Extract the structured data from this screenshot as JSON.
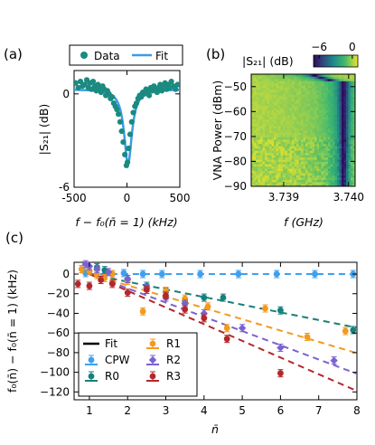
{
  "panel_labels": [
    "(a)",
    "(b)",
    "(c)"
  ],
  "colors": {
    "data_teal": "#1b8a80",
    "fit_blue": "#3b9be8",
    "CPW": "#3ea0ef",
    "R0": "#17807a",
    "R1": "#f39a1e",
    "R2": "#7b62d0",
    "R3": "#b3272c"
  },
  "chart_data": [
    {
      "id": "a",
      "type": "scatter",
      "xlabel": "f − f₀(n̄ = 1) (kHz)",
      "ylabel": "|S₂₁| (dB)",
      "xlim": [
        -500,
        500
      ],
      "ylim": [
        -6,
        1.5
      ],
      "xticks": [
        "-500",
        "0",
        "500"
      ],
      "yticks": [
        "-6",
        "0"
      ],
      "xtick_values": [
        -500,
        0,
        500
      ],
      "ytick_values": [
        -6,
        0
      ],
      "legend": [
        "Data",
        "Fit"
      ],
      "legend_position": "top",
      "fit": {
        "center": 10,
        "depth": 4.8,
        "half_width": 45,
        "offset": 0.3
      },
      "x": [
        -485,
        -460,
        -440,
        -420,
        -400,
        -380,
        -365,
        -350,
        -335,
        -320,
        -305,
        -290,
        -275,
        -260,
        -245,
        -230,
        -215,
        -200,
        -185,
        -170,
        -155,
        -140,
        -125,
        -110,
        -95,
        -80,
        -65,
        -50,
        -35,
        -20,
        -5,
        5,
        15,
        30,
        45,
        60,
        75,
        90,
        105,
        120,
        135,
        150,
        165,
        180,
        195,
        210,
        225,
        240,
        255,
        270,
        285,
        300,
        315,
        330,
        345,
        360,
        375,
        390,
        405,
        420,
        440,
        460,
        480
      ],
      "y": [
        0.7,
        0.4,
        0.8,
        0.5,
        0.6,
        0.9,
        0.4,
        0.7,
        0.3,
        0.8,
        0.5,
        0.2,
        0.6,
        0.4,
        0.1,
        0.5,
        0.3,
        -0.1,
        0.2,
        0.0,
        -0.3,
        -0.2,
        -0.6,
        -0.8,
        -1.0,
        -1.3,
        -1.8,
        -2.4,
        -3.1,
        -3.9,
        -4.6,
        -4.4,
        -3.5,
        -2.6,
        -1.8,
        -1.2,
        -0.8,
        -0.6,
        -0.3,
        -0.1,
        -0.2,
        0.1,
        0.0,
        0.3,
        0.2,
        -0.1,
        0.4,
        0.2,
        0.5,
        0.3,
        0.1,
        0.4,
        0.6,
        0.2,
        0.5,
        0.7,
        0.3,
        0.6,
        0.4,
        0.8,
        0.5,
        0.3,
        0.6
      ]
    },
    {
      "id": "b",
      "type": "heatmap",
      "xlabel": "f (GHz)",
      "ylabel": "VNA Power (dBm)",
      "colorbar_label": "|S₂₁| (dB)",
      "colorbar_ticks": [
        "−6",
        "0"
      ],
      "colorbar_tick_values": [
        -6,
        0
      ],
      "colorbar_range": [
        -7,
        1
      ],
      "xlim": [
        3.7385,
        3.7401
      ],
      "ylim": [
        -90,
        -45
      ],
      "xticks": [
        "3.739",
        "3.740"
      ],
      "yticks": [
        "−50",
        "−60",
        "−70",
        "−80",
        "−90"
      ],
      "xtick_values": [
        3.739,
        3.74
      ],
      "ytick_values": [
        -50,
        -60,
        -70,
        -80,
        -90
      ],
      "resonance": {
        "f_low_power": 3.73993,
        "f_high_power": 3.73945,
        "power_pivot": -48
      }
    },
    {
      "id": "c",
      "type": "scatter",
      "xlabel": "n̄",
      "ylabel": "f₀(n̄) − f₀(n̄ = 1) (kHz)",
      "xlim": [
        0.6,
        8
      ],
      "ylim": [
        -128,
        12
      ],
      "xticks": [
        "1",
        "2",
        "3",
        "4",
        "5",
        "6",
        "7",
        "8"
      ],
      "yticks": [
        "0",
        "−20",
        "−40",
        "−60",
        "−80",
        "−100",
        "−120"
      ],
      "xtick_values": [
        1,
        2,
        3,
        4,
        5,
        6,
        7,
        8
      ],
      "ytick_values": [
        0,
        -20,
        -40,
        -60,
        -80,
        -100,
        -120
      ],
      "legend_position": "bottom-left",
      "legend_fit_label": "Fit",
      "series": [
        {
          "name": "CPW",
          "x": [
            0.9,
            1.4,
            1.9,
            2.4,
            2.9,
            3.9,
            4.9,
            5.9,
            6.9,
            7.9
          ],
          "y": [
            1,
            0,
            1,
            0,
            0,
            0,
            0,
            0,
            0,
            0
          ],
          "fit_slope": 0
        },
        {
          "name": "R0",
          "x": [
            0.8,
            1.0,
            1.2,
            1.4,
            1.6,
            2.0,
            2.5,
            3.0,
            3.5,
            4.0,
            4.5,
            6.0,
            7.9
          ],
          "y": [
            5,
            3,
            7,
            4,
            0,
            -5,
            -12,
            -18,
            -28,
            -24,
            -24,
            -37,
            -57
          ],
          "fit_slope": -7.8
        },
        {
          "name": "R1",
          "x": [
            0.8,
            1.0,
            1.2,
            1.4,
            1.6,
            2.0,
            2.4,
            3.0,
            3.5,
            4.1,
            4.6,
            5.6,
            6.7,
            7.7
          ],
          "y": [
            5,
            3,
            -1,
            -4,
            0,
            -7,
            -38,
            -17,
            -25,
            -33,
            -55,
            -35,
            -64,
            -58
          ],
          "fit_slope": -11.5
        },
        {
          "name": "R2",
          "x": [
            0.9,
            1.0,
            1.2,
            1.5,
            2.0,
            2.5,
            3.0,
            3.5,
            4.0,
            5.0,
            6.0,
            7.4
          ],
          "y": [
            10,
            8,
            5,
            2,
            -5,
            -14,
            -24,
            -30,
            -40,
            -55,
            -75,
            -88
          ],
          "fit_slope": -14.5
        },
        {
          "name": "R3",
          "x": [
            0.7,
            1.0,
            1.3,
            1.6,
            2.0,
            2.5,
            3.0,
            3.5,
            4.0,
            4.6,
            6.0
          ],
          "y": [
            -10,
            -12,
            -6,
            -10,
            -19,
            -16,
            -22,
            -36,
            -45,
            -66,
            -101
          ],
          "fit_slope": -17
        }
      ]
    }
  ]
}
